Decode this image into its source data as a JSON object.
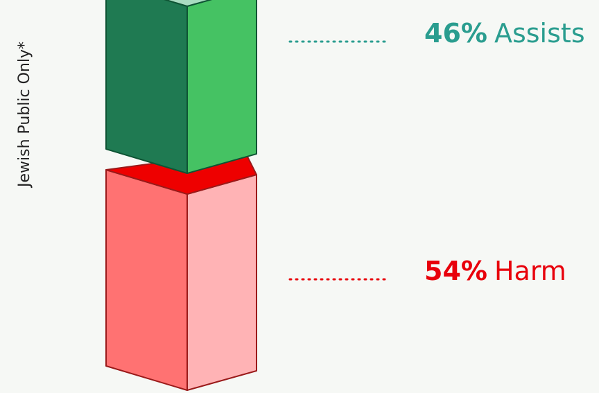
{
  "chart_data": {
    "type": "bar",
    "y_label": "Jewish Public Only*",
    "series": [
      {
        "name": "Assists",
        "values": [
          46
        ],
        "value_labels": [
          "46%"
        ],
        "color": "#2a9d8f"
      },
      {
        "name": "Harm",
        "values": [
          54
        ],
        "value_labels": [
          "54%"
        ],
        "color": "#e8000b"
      }
    ]
  }
}
